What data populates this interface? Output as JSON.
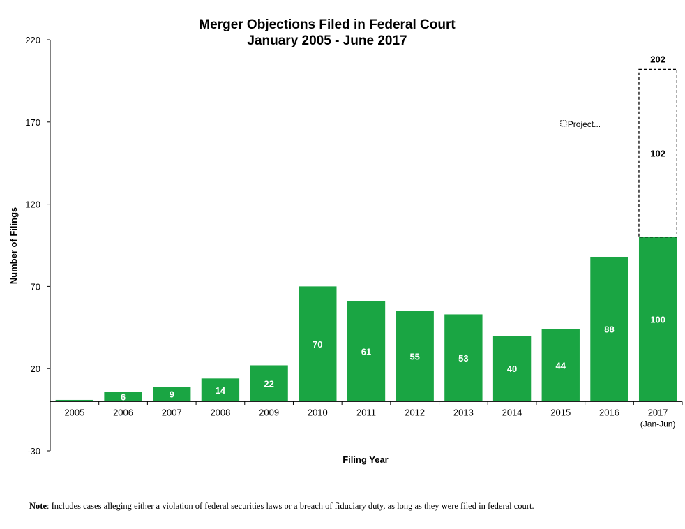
{
  "chart_data": {
    "type": "bar",
    "title": "Merger Objections Filed in Federal Court",
    "subtitle": "January 2005 - June 2017",
    "xlabel": "Filing Year",
    "ylabel": "Number of Filings",
    "ylim": [
      -30,
      220
    ],
    "yticks": [
      220,
      170,
      120,
      70,
      20,
      -30
    ],
    "categories": [
      "2005",
      "2006",
      "2007",
      "2008",
      "2009",
      "2010",
      "2011",
      "2012",
      "2013",
      "2014",
      "2015",
      "2016",
      "2017"
    ],
    "category_sublabels": [
      "",
      "",
      "",
      "",
      "",
      "",
      "",
      "",
      "",
      "",
      "",
      "",
      "(Jan-Jun)"
    ],
    "values": [
      1,
      6,
      9,
      14,
      22,
      70,
      61,
      55,
      53,
      40,
      44,
      88,
      100
    ],
    "value_labels": [
      "",
      "6",
      "9",
      "14",
      "22",
      "70",
      "61",
      "55",
      "53",
      "40",
      "44",
      "88",
      "100"
    ],
    "projected": {
      "category": "2017",
      "base": 100,
      "projected_increment": 102,
      "total": 202,
      "increment_label": "102",
      "total_label": "202",
      "legend_label": "Project..."
    },
    "bar_color": "#1aa543",
    "label_color": "#ffffff",
    "grid": false
  },
  "note": {
    "prefix": "Note",
    "text": ": Includes cases alleging either a violation of federal securities laws or a breach of fiduciary duty, as long as they were filed in federal court."
  }
}
